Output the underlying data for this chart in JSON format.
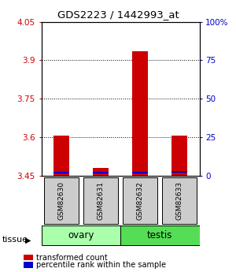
{
  "title": "GDS2223 / 1442993_at",
  "samples": [
    "GSM82630",
    "GSM82631",
    "GSM82632",
    "GSM82633"
  ],
  "tissue_groups": [
    {
      "label": "ovary",
      "samples": [
        0,
        1
      ],
      "color": "#aaffaa"
    },
    {
      "label": "testis",
      "samples": [
        2,
        3
      ],
      "color": "#55dd55"
    }
  ],
  "ylim_left": [
    3.45,
    4.05
  ],
  "yticks_left": [
    3.45,
    3.6,
    3.75,
    3.9,
    4.05
  ],
  "yticks_right_values": [
    0,
    25,
    50,
    75,
    100
  ],
  "yticks_right_labels": [
    "0",
    "25",
    "50",
    "75",
    "100%"
  ],
  "red_bar_values": [
    3.607,
    3.478,
    3.935,
    3.607
  ],
  "blue_bar_values": [
    3.458,
    3.457,
    3.458,
    3.46
  ],
  "bar_base": 3.45,
  "bar_width": 0.4,
  "red_color": "#cc0000",
  "blue_color": "#0000cc",
  "bg_plot": "#ffffff",
  "sample_box_color": "#cccccc",
  "left_axis_color": "#cc0000",
  "right_axis_color": "#0000cc",
  "legend_red": "transformed count",
  "legend_blue": "percentile rank within the sample",
  "tissue_label": "tissue",
  "figsize": [
    3.0,
    3.45
  ],
  "dpi": 100
}
